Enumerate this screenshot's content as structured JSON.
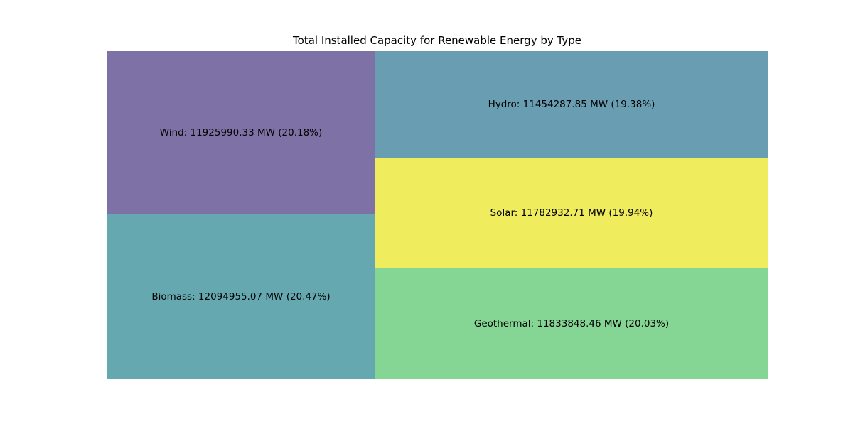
{
  "chart_data": {
    "type": "treemap",
    "title": "Total Installed Capacity for Renewable Energy by Type",
    "unit": "MW",
    "items": [
      {
        "name": "Biomass",
        "value": 12094955.07,
        "percent": 20.47,
        "color": "#66a8b0",
        "label": "Biomass: 12094955.07 MW (20.47%)"
      },
      {
        "name": "Wind",
        "value": 11925990.33,
        "percent": 20.18,
        "color": "#7e71a6",
        "label": "Wind: 11925990.33 MW (20.18%)"
      },
      {
        "name": "Geothermal",
        "value": 11833848.46,
        "percent": 20.03,
        "color": "#85d595",
        "label": "Geothermal: 11833848.46 MW (20.03%)"
      },
      {
        "name": "Solar",
        "value": 11782932.71,
        "percent": 19.94,
        "color": "#efec5e",
        "label": "Solar: 11782932.71 MW (19.94%)"
      },
      {
        "name": "Hydro",
        "value": 11454287.85,
        "percent": 19.38,
        "color": "#699db1",
        "label": "Hydro: 11454287.85 MW (19.38%)"
      }
    ]
  }
}
